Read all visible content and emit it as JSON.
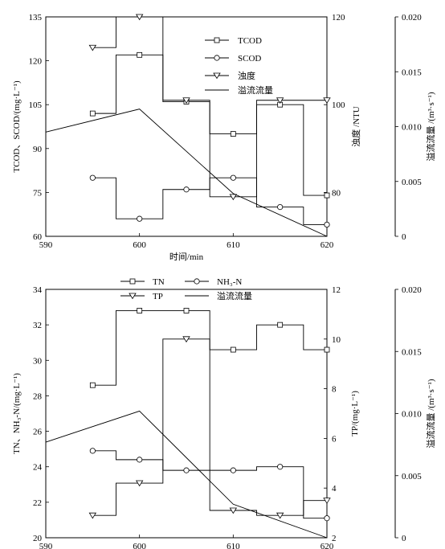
{
  "chart_data": [
    {
      "type": "line",
      "x_label": "时间/min",
      "x_ticks": [
        590,
        600,
        610,
        620
      ],
      "xlim": [
        590,
        620
      ],
      "axes": [
        {
          "id": "left",
          "label": "TCOD、SCOD/(mg·L⁻¹)",
          "ylim": [
            60,
            135
          ],
          "ticks": [
            60,
            75,
            90,
            105,
            120,
            135
          ]
        },
        {
          "id": "right1",
          "label": "浊度 /NTU",
          "ylim": [
            70,
            120
          ],
          "ticks": [
            80,
            100,
            120
          ]
        },
        {
          "id": "right2",
          "label": "溢流流量 /(m³·s⁻¹)",
          "ylim": [
            0,
            0.02
          ],
          "ticks": [
            "0",
            "0.005",
            "0.010",
            "0.015",
            "0.020"
          ]
        }
      ],
      "legend": [
        "TCOD",
        "SCOD",
        "浊度",
        "溢流流量"
      ],
      "series": [
        {
          "name": "TCOD",
          "axis": "left",
          "marker": "square",
          "x": [
            595,
            600,
            605,
            610,
            615,
            620
          ],
          "y": [
            102,
            122,
            106,
            95,
            105,
            74
          ]
        },
        {
          "name": "SCOD",
          "axis": "left",
          "marker": "circle",
          "x": [
            595,
            600,
            605,
            610,
            615,
            620
          ],
          "y": [
            80,
            66,
            76,
            80,
            70,
            64
          ]
        },
        {
          "name": "浊度",
          "axis": "right1",
          "marker": "triangle",
          "x": [
            595,
            600,
            605,
            610,
            615,
            620
          ],
          "y": [
            113,
            120,
            101,
            79,
            101,
            101
          ]
        },
        {
          "name": "溢流流量",
          "axis": "right2",
          "marker": "none",
          "x": [
            590,
            600,
            610,
            620
          ],
          "y": [
            0.0095,
            0.0116,
            0.0039,
            0.0
          ]
        }
      ]
    },
    {
      "type": "line",
      "x_label": "时间/min",
      "x_ticks": [
        590,
        600,
        610,
        620
      ],
      "xlim": [
        590,
        620
      ],
      "axes": [
        {
          "id": "left",
          "label": "TN、NH₃-N/(mg·L⁻¹)",
          "ylim": [
            20,
            34
          ],
          "ticks": [
            20,
            22,
            24,
            26,
            28,
            30,
            32,
            34
          ]
        },
        {
          "id": "right1",
          "label": "TP/(mg·L⁻¹)",
          "ylim": [
            2,
            12
          ],
          "ticks": [
            2,
            4,
            6,
            8,
            10,
            12
          ]
        },
        {
          "id": "right2",
          "label": "溢流流量 /(m³·s⁻¹)",
          "ylim": [
            0,
            0.02
          ],
          "ticks": [
            "0",
            "0.005",
            "0.010",
            "0.015",
            "0.020"
          ]
        }
      ],
      "legend": [
        "TN",
        "NH₃-N",
        "TP",
        "溢流流量"
      ],
      "series": [
        {
          "name": "TN",
          "axis": "left",
          "marker": "square",
          "x": [
            595,
            600,
            605,
            610,
            615,
            620
          ],
          "y": [
            28.6,
            32.8,
            32.8,
            30.6,
            32.0,
            30.6
          ]
        },
        {
          "name": "NH₃-N",
          "axis": "left",
          "marker": "circle",
          "x": [
            595,
            600,
            605,
            610,
            615,
            620
          ],
          "y": [
            24.9,
            24.4,
            23.8,
            23.8,
            24.0,
            21.1
          ]
        },
        {
          "name": "TP",
          "axis": "right1",
          "marker": "triangle",
          "x": [
            595,
            600,
            605,
            610,
            615,
            620
          ],
          "y": [
            2.9,
            4.2,
            10.0,
            3.1,
            2.9,
            3.5
          ]
        },
        {
          "name": "溢流流量",
          "axis": "right2",
          "marker": "none",
          "x": [
            590,
            600,
            610,
            620
          ],
          "y": [
            0.0077,
            0.0102,
            0.0027,
            0.0
          ]
        }
      ]
    }
  ]
}
